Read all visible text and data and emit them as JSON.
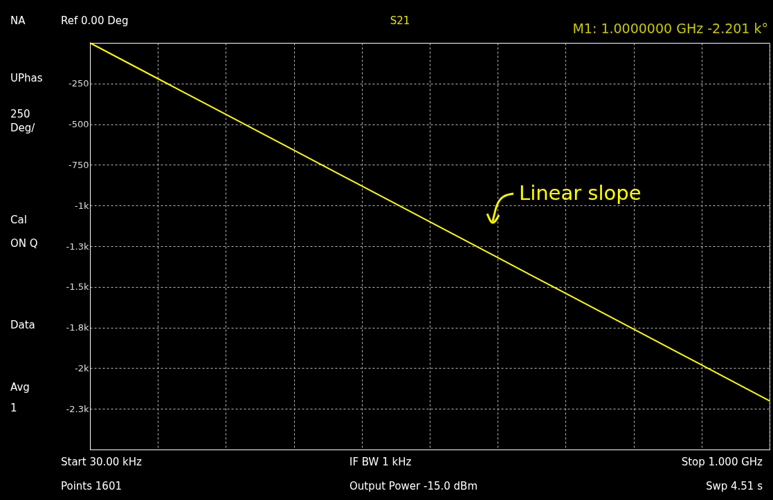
{
  "chart_data": {
    "type": "line",
    "title": "S21",
    "categories": [
      null,
      null,
      null,
      null,
      null,
      null,
      null,
      null,
      null,
      null,
      null
    ],
    "series": [
      {
        "color": "#ffff00",
        "values": [
          0,
          -220,
          -440,
          -660,
          -880,
          -1100,
          -1320,
          -1540,
          -1760,
          -1980,
          -2201
        ]
      }
    ],
    "ylim": [
      -2500,
      0
    ],
    "yticks": [
      {
        "value": -250,
        "label": "-250"
      },
      {
        "value": -500,
        "label": "-500"
      },
      {
        "value": -750,
        "label": "-750"
      },
      {
        "value": -1000,
        "label": "-1k"
      },
      {
        "value": -1250,
        "label": "-1.3k"
      },
      {
        "value": -1500,
        "label": "-1.5k"
      },
      {
        "value": -1750,
        "label": "-1.8k"
      },
      {
        "value": -2000,
        "label": "-2k"
      },
      {
        "value": -2250,
        "label": "-2.3k"
      }
    ],
    "tick_labels": "y",
    "grid": true,
    "marker": "none",
    "line_style": "solid",
    "annotations": [
      "NA",
      "UPhas",
      "250",
      "Deg/",
      "Cal",
      "ON Q",
      "Data",
      "Avg",
      "1",
      "Ref 0.00 Deg",
      "M1:  1.0000000 GHz -2.201 k°",
      "Start 30.00 kHz",
      "Points 1601",
      "IF BW 1 kHz",
      "Output Power -15.0 dBm",
      "Stop 1.000 GHz",
      "Swp 4.51 s",
      "Linear slope"
    ]
  }
}
